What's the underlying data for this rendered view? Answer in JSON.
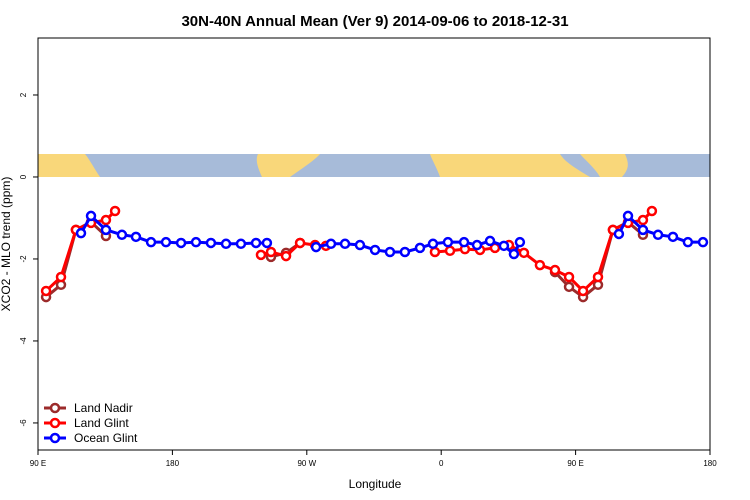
{
  "chart_data": {
    "type": "line",
    "title": "30N-40N Annual Mean (Ver 9)   2014-09-06 to 2018-12-31",
    "xlabel": "Longitude",
    "ylabel": "XCO2 - MLO trend (ppm)",
    "xlim": [
      90,
      540
    ],
    "xticks": [
      {
        "value": 90,
        "label": "90 E"
      },
      {
        "value": 180,
        "label": "180"
      },
      {
        "value": 270,
        "label": "90 W"
      },
      {
        "value": 360,
        "label": "0"
      },
      {
        "value": 450,
        "label": "90 E"
      },
      {
        "value": 540,
        "label": "180"
      }
    ],
    "ylim": [
      -6.66,
      3.39
    ],
    "yticks": [
      -6,
      -4,
      -2,
      0,
      2
    ],
    "legend": "lower left",
    "series": [
      {
        "name": "Land Nadir",
        "color": "#9c2b2b",
        "x": [
          95.4,
          105.4,
          115.4,
          125.5,
          135.5,
          null,
          246.0,
          256.1,
          265.5,
          null,
          436.2,
          445.6,
          455.0,
          465.0,
          475.0,
          485.1,
          495.1
        ],
        "values": [
          -2.93,
          -2.63,
          -1.29,
          -1.1,
          -1.44,
          null,
          -1.95,
          -1.85,
          -1.61,
          null,
          -2.32,
          -2.68,
          -2.93,
          -2.63,
          -1.29,
          -1.1,
          -1.41
        ]
      },
      {
        "name": "Land Glint",
        "color": "#ff0000",
        "x": [
          95.4,
          105.4,
          115.4,
          125.5,
          135.5,
          141.6,
          null,
          239.3,
          246.0,
          256.1,
          265.5,
          275.5,
          282.8,
          null,
          355.8,
          365.9,
          375.9,
          386.0,
          396.0,
          405.4,
          415.4,
          426.1,
          436.2,
          445.6,
          455.0,
          465.0,
          475.0,
          485.1,
          495.1,
          501.1
        ],
        "values": [
          -2.78,
          -2.44,
          -1.29,
          -1.12,
          -1.05,
          -0.83,
          null,
          -1.9,
          -1.83,
          -1.93,
          -1.61,
          -1.66,
          -1.68,
          null,
          -1.83,
          -1.8,
          -1.76,
          -1.78,
          -1.73,
          -1.66,
          -1.85,
          -2.15,
          -2.27,
          -2.44,
          -2.78,
          -2.44,
          -1.29,
          -1.12,
          -1.05,
          -0.83
        ]
      },
      {
        "name": "Ocean Glint",
        "color": "#0000ff",
        "x": [
          118.8,
          125.5,
          135.5,
          146.2,
          155.6,
          165.7,
          175.7,
          185.8,
          195.8,
          205.8,
          215.9,
          225.9,
          236.0,
          243.3,
          null,
          276.2,
          286.2,
          295.6,
          305.6,
          315.7,
          325.7,
          335.7,
          345.8,
          354.5,
          364.5,
          375.3,
          384.0,
          392.7,
          402.0,
          408.7,
          412.7,
          null,
          479.0,
          485.1,
          495.1,
          505.2,
          515.2,
          525.2,
          535.3
        ],
        "values": [
          -1.37,
          -0.95,
          -1.29,
          -1.41,
          -1.46,
          -1.59,
          -1.59,
          -1.61,
          -1.59,
          -1.61,
          -1.63,
          -1.63,
          -1.61,
          -1.61,
          null,
          -1.71,
          -1.63,
          -1.63,
          -1.66,
          -1.78,
          -1.83,
          -1.83,
          -1.73,
          -1.63,
          -1.59,
          -1.59,
          -1.66,
          -1.56,
          -1.68,
          -1.88,
          -1.59,
          null,
          -1.39,
          -0.95,
          -1.29,
          -1.41,
          -1.46,
          -1.59,
          -1.59
        ]
      }
    ]
  }
}
